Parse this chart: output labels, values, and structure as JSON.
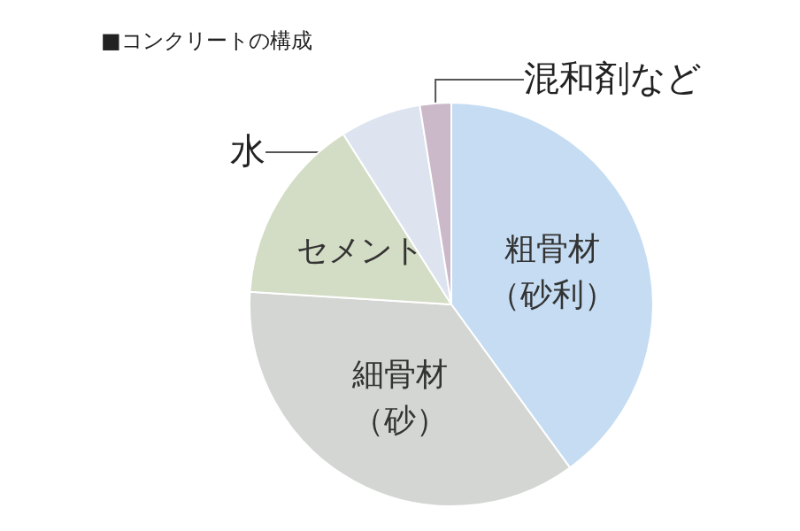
{
  "chart_data": {
    "type": "pie",
    "title": "■コンクリートの構成",
    "categories": [
      "粗骨材（砂利）",
      "細骨材（砂）",
      "セメント",
      "水",
      "混和剤など"
    ],
    "values": [
      40,
      36,
      15,
      6.5,
      2.5
    ],
    "colors": [
      "#c5dcf2",
      "#d3d6d3",
      "#d3dcc4",
      "#dde4ef",
      "#cbb8c9"
    ],
    "legend": false
  }
}
